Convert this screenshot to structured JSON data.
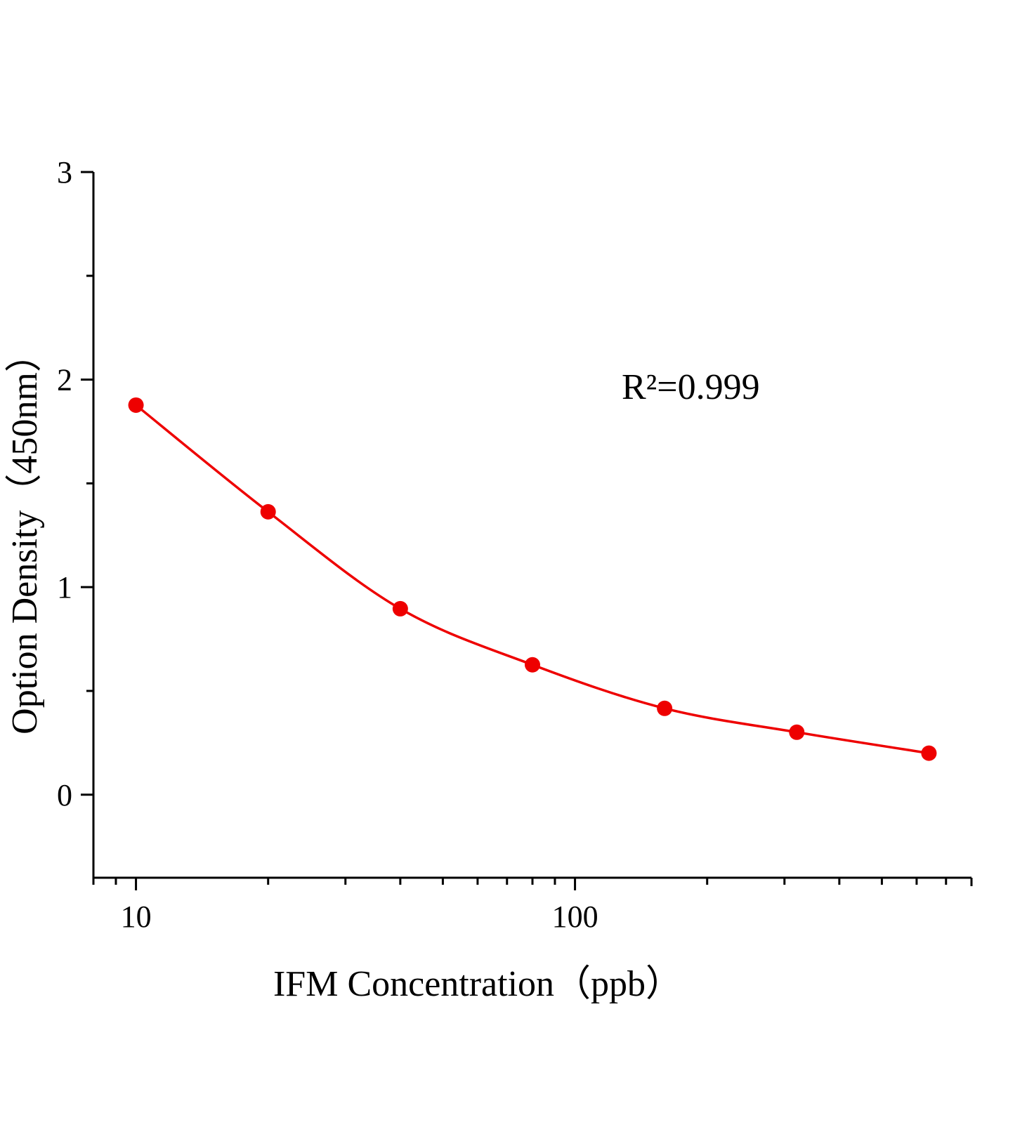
{
  "chart_data": {
    "type": "scatter",
    "x_label": "IFM Concentration（ppb）",
    "y_label": "Option Density（450nm）",
    "annotation": "R²=0.999",
    "x": [
      10,
      20,
      40,
      80,
      160,
      320,
      640
    ],
    "series": [
      {
        "color": "#ee0000",
        "values": [
          1.877,
          1.363,
          0.896,
          0.626,
          0.416,
          0.301,
          0.2
        ]
      }
    ],
    "xlim": [
      8,
      800
    ],
    "xticks": [
      10,
      100
    ],
    "xscale": "log",
    "ylim": [
      -0.4,
      3
    ],
    "yticks": [
      0,
      1,
      2,
      3
    ],
    "fit_line": true
  }
}
